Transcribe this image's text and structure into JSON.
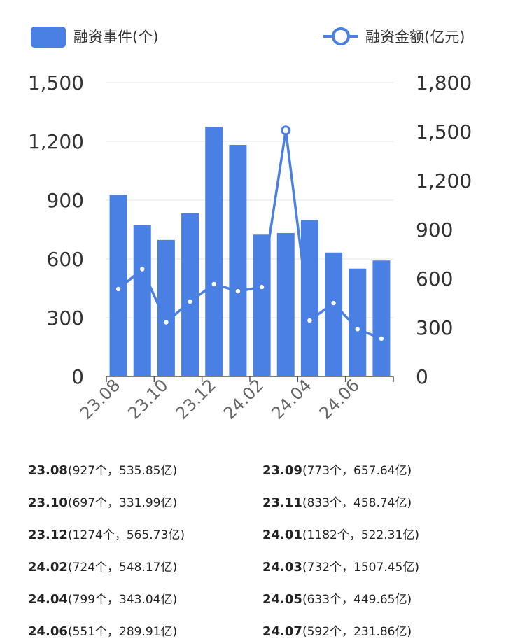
{
  "chart_data": {
    "type": "bar",
    "legend_position": "top",
    "grid": true,
    "colors": {
      "bar": "#4a7fe3",
      "line": "#4a7fe3"
    },
    "categories": [
      "23.08",
      "23.09",
      "23.10",
      "23.11",
      "23.12",
      "24.01",
      "24.02",
      "24.03",
      "24.04",
      "24.05",
      "24.06",
      "24.07"
    ],
    "x_tick_labels": [
      "23.08",
      "23.10",
      "23.12",
      "24.02",
      "24.04",
      "24.06"
    ],
    "series": [
      {
        "name": "融资事件(个)",
        "type": "bar",
        "axis": "left",
        "values": [
          927,
          773,
          697,
          833,
          1274,
          1182,
          724,
          732,
          799,
          633,
          551,
          592
        ]
      },
      {
        "name": "融资金额(亿元)",
        "type": "line",
        "axis": "right",
        "values": [
          535.85,
          657.64,
          331.99,
          458.74,
          565.73,
          522.31,
          548.17,
          1507.45,
          343.04,
          449.65,
          289.91,
          231.86
        ]
      }
    ],
    "y_left": {
      "range": [
        0,
        1500
      ],
      "ticks": [
        "0",
        "300",
        "600",
        "900",
        "1,200",
        "1,500"
      ]
    },
    "y_right": {
      "range": [
        0,
        1800
      ],
      "ticks": [
        "0",
        "300",
        "600",
        "900",
        "1,200",
        "1,500",
        "1,800"
      ]
    },
    "highlight_index": 7
  },
  "entries": [
    {
      "month": "23.08",
      "detail": "(927个，535.85亿)"
    },
    {
      "month": "23.09",
      "detail": "(773个，657.64亿)"
    },
    {
      "month": "23.10",
      "detail": "(697个，331.99亿)"
    },
    {
      "month": "23.11",
      "detail": "(833个，458.74亿)"
    },
    {
      "month": "23.12",
      "detail": "(1274个，565.73亿)"
    },
    {
      "month": "24.01",
      "detail": "(1182个，522.31亿)"
    },
    {
      "month": "24.02",
      "detail": "(724个，548.17亿)"
    },
    {
      "month": "24.03",
      "detail": "(732个，1507.45亿)"
    },
    {
      "month": "24.04",
      "detail": "(799个，343.04亿)"
    },
    {
      "month": "24.05",
      "detail": "(633个，449.65亿)"
    },
    {
      "month": "24.06",
      "detail": "(551个，289.91亿)"
    },
    {
      "month": "24.07",
      "detail": "(592个，231.86亿)"
    }
  ]
}
